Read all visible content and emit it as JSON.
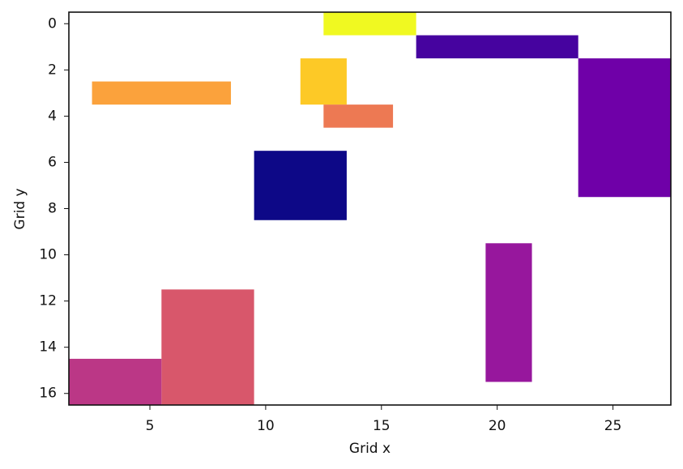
{
  "chart_data": {
    "type": "heatmap",
    "title": "",
    "xlabel": "Grid x",
    "ylabel": "Grid y",
    "xlim": [
      1.5,
      27.5
    ],
    "ylim": [
      16.5,
      -0.5
    ],
    "x_ticks": [
      5,
      10,
      15,
      20,
      25
    ],
    "y_ticks": [
      0,
      2,
      4,
      6,
      8,
      10,
      12,
      14,
      16
    ],
    "grid": false,
    "legend": "none",
    "colormap": "plasma",
    "cells": [
      {
        "x0": 12.5,
        "x1": 16.5,
        "y0": -0.5,
        "y1": 0.5,
        "color": "#f0f921"
      },
      {
        "x0": 16.5,
        "x1": 23.5,
        "y0": 0.5,
        "y1": 1.5,
        "color": "#46039f"
      },
      {
        "x0": 23.5,
        "x1": 27.5,
        "y0": 1.5,
        "y1": 7.5,
        "color": "#6f00a8"
      },
      {
        "x0": 11.5,
        "x1": 13.5,
        "y0": 1.5,
        "y1": 3.5,
        "color": "#fdc926"
      },
      {
        "x0": 2.5,
        "x1": 8.5,
        "y0": 2.5,
        "y1": 3.5,
        "color": "#fba23c"
      },
      {
        "x0": 12.5,
        "x1": 15.5,
        "y0": 3.5,
        "y1": 4.5,
        "color": "#ed7953"
      },
      {
        "x0": 9.5,
        "x1": 13.5,
        "y0": 5.5,
        "y1": 8.5,
        "color": "#0d0887"
      },
      {
        "x0": 19.5,
        "x1": 21.5,
        "y0": 9.5,
        "y1": 15.5,
        "color": "#97179d"
      },
      {
        "x0": 5.5,
        "x1": 9.5,
        "y0": 11.5,
        "y1": 16.5,
        "color": "#d8576b"
      },
      {
        "x0": 1.5,
        "x1": 5.5,
        "y0": 14.5,
        "y1": 16.5,
        "color": "#bb3786"
      }
    ]
  }
}
